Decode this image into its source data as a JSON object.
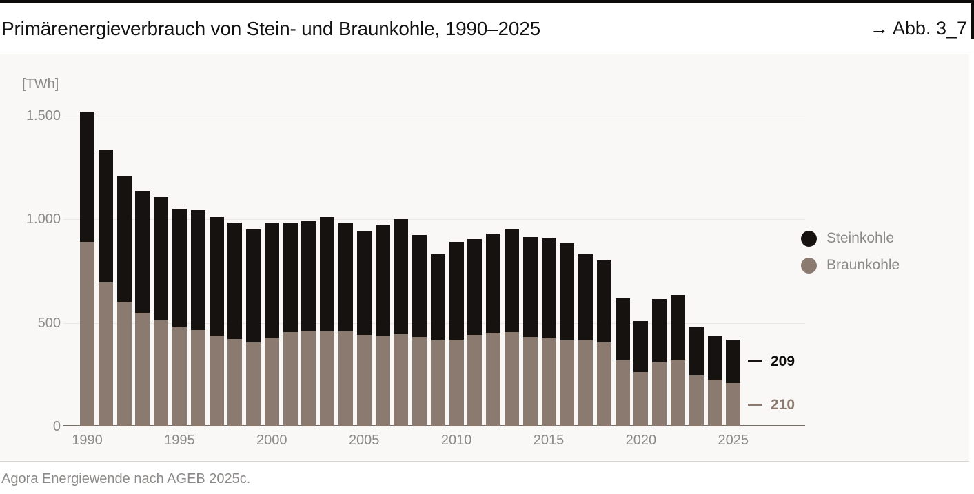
{
  "header": {
    "title": "Primärenergieverbrauch von Stein- und Braunkohle, 1990–2025",
    "figure_ref": "→ Abb. 3_7"
  },
  "footer": {
    "source": "Agora Energiewende nach AGEB 2025c."
  },
  "colors": {
    "steinkohle": "#15120f",
    "braunkohle": "#8a7a70",
    "panel_background": "#f9f8f6",
    "axis_text": "#8c8a88",
    "gridline": "#eae8e4",
    "baseline": "#716d69",
    "accent_bar": "#0d0b0a"
  },
  "chart_data": {
    "type": "bar",
    "stacked": true,
    "title": "Primärenergieverbrauch von Stein- und Braunkohle, 1990–2025",
    "unit_label": "[TWh]",
    "ylabel": "TWh",
    "ylim": [
      0,
      1500
    ],
    "yticks": [
      0,
      500,
      1000,
      1500
    ],
    "ytick_labels": [
      "0",
      "500",
      "1.000",
      "1.500"
    ],
    "grid": true,
    "legend_position": "right",
    "x": [
      1990,
      1991,
      1992,
      1993,
      1994,
      1995,
      1996,
      1997,
      1998,
      1999,
      2000,
      2001,
      2002,
      2003,
      2004,
      2005,
      2006,
      2007,
      2008,
      2009,
      2010,
      2011,
      2012,
      2013,
      2014,
      2015,
      2016,
      2017,
      2018,
      2019,
      2020,
      2021,
      2022,
      2023,
      2024,
      2025
    ],
    "x_tick_labels": [
      "1990",
      "1995",
      "2000",
      "2005",
      "2010",
      "2015",
      "2020",
      "2025"
    ],
    "stack_order_bottom_to_top": [
      "Braunkohle",
      "Steinkohle"
    ],
    "series": [
      {
        "name": "Steinkohle",
        "color": "#15120f",
        "values": [
          631,
          642,
          604,
          589,
          592,
          569,
          579,
          570,
          563,
          544,
          555,
          529,
          529,
          552,
          523,
          498,
          540,
          553,
          493,
          415,
          470,
          464,
          479,
          501,
          483,
          480,
          467,
          415,
          394,
          297,
          246,
          308,
          315,
          237,
          210,
          209
        ]
      },
      {
        "name": "Braunkohle",
        "color": "#8a7a70",
        "values": [
          889,
          693,
          601,
          549,
          513,
          481,
          466,
          440,
          422,
          406,
          430,
          456,
          461,
          458,
          457,
          442,
          435,
          447,
          432,
          415,
          420,
          441,
          451,
          454,
          432,
          428,
          417,
          415,
          406,
          320,
          263,
          308,
          321,
          245,
          225,
          210
        ]
      }
    ],
    "end_labels": [
      {
        "series": "Steinkohle",
        "label": "209",
        "color": "#0f0d0b"
      },
      {
        "series": "Braunkohle",
        "label": "210",
        "color": "#8a7a70"
      }
    ]
  }
}
